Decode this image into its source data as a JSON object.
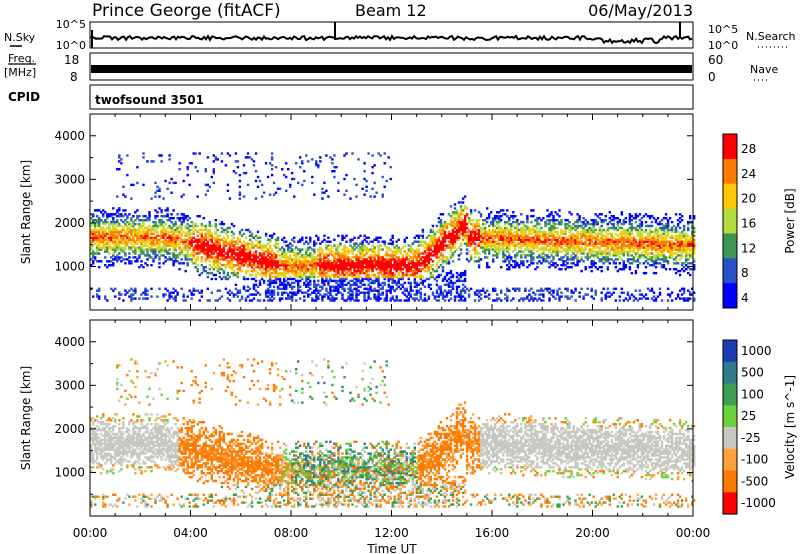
{
  "header": {
    "station": "Prince George (fitACF)",
    "beam": "Beam 12",
    "date": "06/May/2013"
  },
  "noise_panel": {
    "left_label": "N.Sky",
    "right_label": "N.Search",
    "left_ticks": [
      "10^5",
      "10^0"
    ],
    "right_ticks": [
      "10^5",
      "10^0"
    ]
  },
  "freq_panel": {
    "left_label_line1": "Freq.",
    "left_label_line2": "[MHz]",
    "right_label": "Nave",
    "left_ticks": [
      "18",
      "8"
    ],
    "right_ticks": [
      "60",
      "0"
    ]
  },
  "cpid_panel": {
    "label": "CPID",
    "text": "twofsound 3501"
  },
  "chart_data": [
    {
      "type": "heatmap",
      "name": "power",
      "ylabel": "Slant Range [km]",
      "ylim": [
        0,
        4500
      ],
      "yticks": [
        1000,
        2000,
        3000,
        4000
      ],
      "xlim": [
        0,
        24
      ],
      "colorbar": {
        "label": "Power [dB]",
        "ticks": [
          "28",
          "24",
          "20",
          "16",
          "12",
          "8",
          "4"
        ],
        "colors": [
          "#ff0000",
          "#ff7a00",
          "#ffc800",
          "#b4dc3c",
          "#3c9650",
          "#2850c8",
          "#0000ff"
        ]
      }
    },
    {
      "type": "heatmap",
      "name": "velocity",
      "ylabel": "Slant Range [km]",
      "ylim": [
        0,
        4500
      ],
      "yticks": [
        1000,
        2000,
        3000,
        4000
      ],
      "xlim": [
        0,
        24
      ],
      "xlabel": "Time UT",
      "xticks": [
        "00:00",
        "04:00",
        "08:00",
        "12:00",
        "16:00",
        "20:00",
        "00:00"
      ],
      "colorbar": {
        "label": "Velocity [m s^-1]",
        "ticks": [
          "1000",
          "500",
          "100",
          "25",
          "-25",
          "-100",
          "-500",
          "-1000"
        ],
        "colors": [
          "#1c3cb4",
          "#2f7a8c",
          "#3ca050",
          "#6cd23c",
          "#c8c8c0",
          "#ffa03c",
          "#ff7a00",
          "#ff0000"
        ]
      }
    }
  ]
}
